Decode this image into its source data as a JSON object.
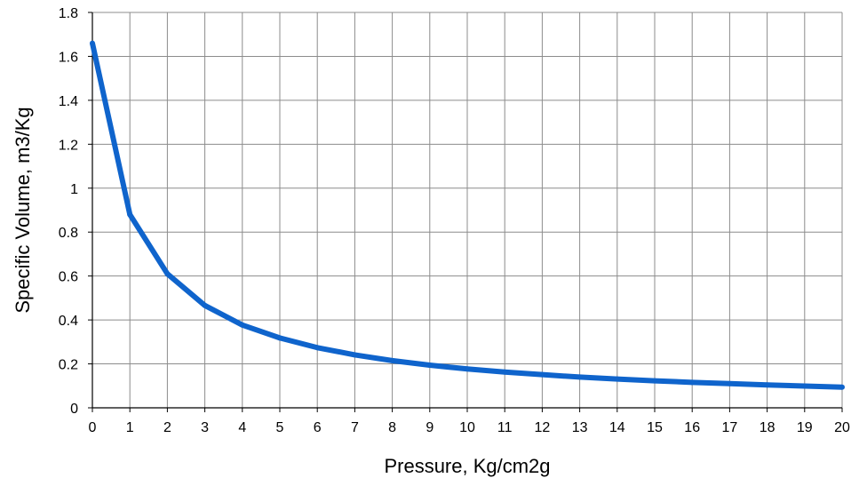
{
  "chart_data": {
    "type": "line",
    "title": "",
    "xlabel": "Pressure, Kg/cm2g",
    "ylabel": "Specific Volume, m3/Kg",
    "xlim": [
      0,
      20
    ],
    "ylim": [
      0,
      1.8
    ],
    "x_ticks": [
      "0",
      "1",
      "2",
      "3",
      "4",
      "5",
      "6",
      "7",
      "8",
      "9",
      "10",
      "11",
      "12",
      "13",
      "14",
      "15",
      "16",
      "17",
      "18",
      "19",
      "20"
    ],
    "y_ticks": [
      "0",
      "0.2",
      "0.4",
      "0.6",
      "0.8",
      "1",
      "1.2",
      "1.4",
      "1.6",
      "1.8"
    ],
    "grid": true,
    "legend": "none",
    "series": [
      {
        "color": "#0F64CC",
        "x": [
          0,
          1,
          2,
          3,
          4,
          5,
          6,
          7,
          8,
          9,
          10,
          11,
          12,
          13,
          14,
          15,
          16,
          17,
          18,
          19,
          20
        ],
        "values": [
          1.66,
          0.88,
          0.61,
          0.466,
          0.377,
          0.318,
          0.274,
          0.241,
          0.215,
          0.194,
          0.177,
          0.163,
          0.151,
          0.14,
          0.131,
          0.123,
          0.116,
          0.11,
          0.104,
          0.099,
          0.094
        ]
      }
    ],
    "colors": {
      "grid": "#8C8C8C",
      "axis": "#000000"
    }
  }
}
